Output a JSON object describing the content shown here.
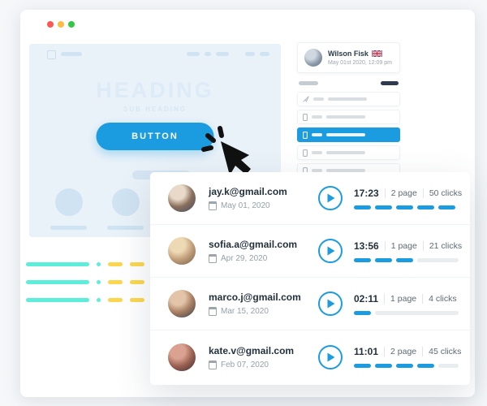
{
  "colors": {
    "accent_blue": "#1b9ce0",
    "teal": "#5ceeda",
    "yellow": "#fcd74e",
    "navy_pill": "#2f3b4d",
    "traffic_red": "#fc5753",
    "traffic_yellow": "#fdbc40",
    "traffic_green": "#33c748"
  },
  "mock_page": {
    "heading": "HEADING",
    "subheading": "SUB HEADING",
    "button_label": "BUTTON"
  },
  "user_card": {
    "name": "Wilson Fisk",
    "flag_icon": "uk-flag",
    "datetime": "May 01st 2020, 12:09 pm"
  },
  "sidebar": {
    "active_row_index": 2,
    "row_icons": [
      "navigation-arrow",
      "phone",
      "phone",
      "phone",
      "phone",
      "phone"
    ]
  },
  "sessions": {
    "progress_segments": 5,
    "rows": [
      {
        "email": "jay.k@gmail.com",
        "date": "May 01, 2020",
        "duration": "17:23",
        "pages": "2 page",
        "clicks": "50 clicks",
        "progress_filled": 5
      },
      {
        "email": "sofia.a@gmail.com",
        "date": "Apr 29, 2020",
        "duration": "13:56",
        "pages": "1 page",
        "clicks": "21 clicks",
        "progress_filled": 3
      },
      {
        "email": "marco.j@gmail.com",
        "date": "Mar 15, 2020",
        "duration": "02:11",
        "pages": "1 page",
        "clicks": "4 clicks",
        "progress_filled": 1
      },
      {
        "email": "kate.v@gmail.com",
        "date": "Feb 07, 2020",
        "duration": "11:01",
        "pages": "2 page",
        "clicks": "45 clicks",
        "progress_filled": 4
      }
    ]
  }
}
